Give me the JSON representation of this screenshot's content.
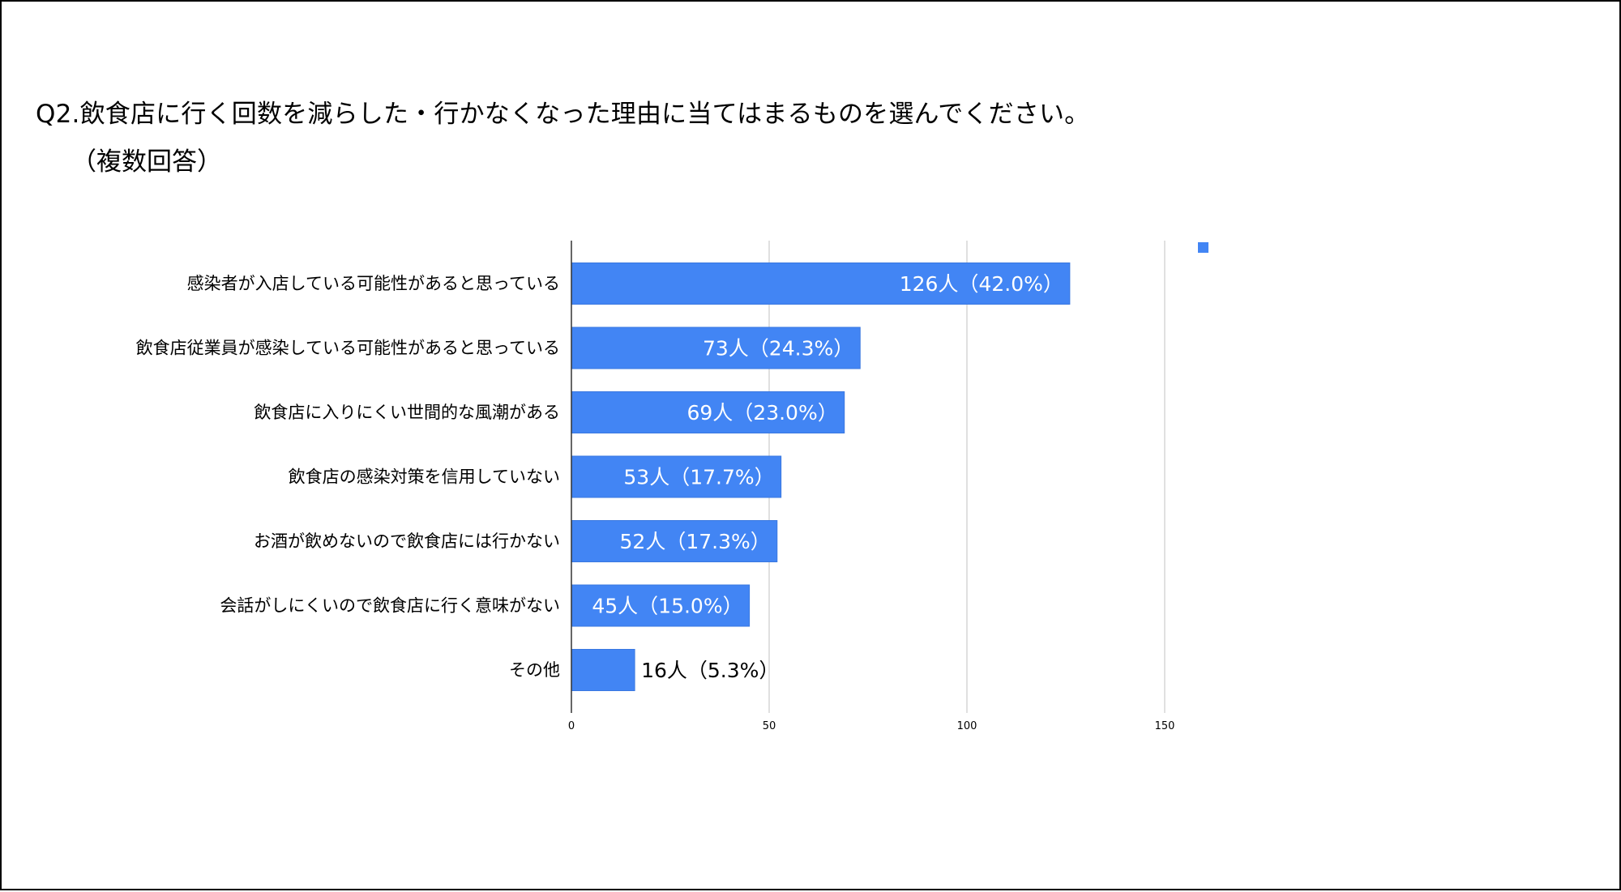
{
  "title": {
    "line1": "Q2.飲食店に行く回数を減らした・行かなくなった理由に当てはまるものを選んでください。",
    "line2": "（複数回答）"
  },
  "chart_data": {
    "type": "bar",
    "orientation": "horizontal",
    "categories": [
      "感染者が入店している可能性があると思っている",
      "飲食店従業員が感染している可能性があると思っている",
      "飲食店に入りにくい世間的な風潮がある",
      "飲食店の感染対策を信用していない",
      "お酒が飲めないので飲食店には行かない",
      "会話がしにくいので飲食店に行く意味がない",
      "その他"
    ],
    "values": [
      126,
      73,
      69,
      53,
      52,
      45,
      16
    ],
    "data_labels": [
      "126人（42.0%）",
      "73人（24.3%）",
      "69人（23.0%）",
      "53人（17.7%）",
      "52人（17.3%）",
      "45人（15.0%）",
      "16人（5.3%）"
    ],
    "x_ticks": [
      0,
      50,
      100,
      150
    ],
    "xlim": [
      0,
      160
    ],
    "grid": true,
    "legend": {
      "placement": "top-right",
      "entries": [
        ""
      ]
    },
    "colors": {
      "bar": "#4285f4",
      "bar_border": "#3a78e0",
      "grid": "#cccccc",
      "axis": "#333333",
      "label_inside": "#ffffff",
      "label_outside": "#000000",
      "text": "#000000"
    }
  }
}
